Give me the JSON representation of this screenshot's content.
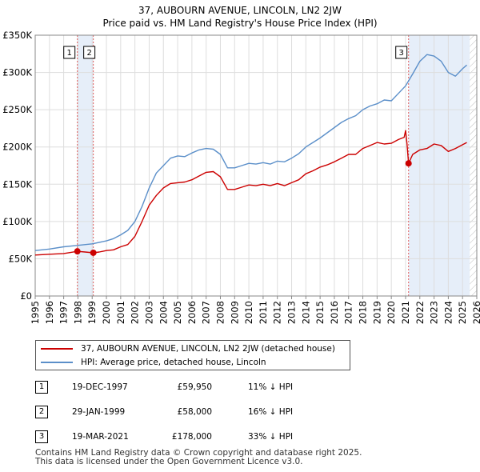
{
  "chart_data": {
    "type": "line",
    "title_line1": "37, AUBOURN AVENUE, LINCOLN, LN2 2JW",
    "title_line2": "Price paid vs. HM Land Registry's House Price Index (HPI)",
    "xlim": [
      1995,
      2026
    ],
    "ylim": [
      0,
      350000
    ],
    "y_ticks": [
      {
        "value": 0,
        "label": "£0"
      },
      {
        "value": 50000,
        "label": "£50K"
      },
      {
        "value": 100000,
        "label": "£100K"
      },
      {
        "value": 150000,
        "label": "£150K"
      },
      {
        "value": 200000,
        "label": "£200K"
      },
      {
        "value": 250000,
        "label": "£250K"
      },
      {
        "value": 300000,
        "label": "£300K"
      },
      {
        "value": 350000,
        "label": "£350K"
      }
    ],
    "x_ticks": [
      "1995",
      "1996",
      "1997",
      "1998",
      "1999",
      "2000",
      "2001",
      "2002",
      "2003",
      "2004",
      "2005",
      "2006",
      "2007",
      "2008",
      "2009",
      "2010",
      "2011",
      "2012",
      "2013",
      "2014",
      "2015",
      "2016",
      "2017",
      "2018",
      "2019",
      "2020",
      "2021",
      "2022",
      "2023",
      "2024",
      "2025",
      "2026"
    ],
    "shaded_spans": [
      {
        "x0": 1997.96,
        "x1": 1999.08
      },
      {
        "x0": 2021.21,
        "x1": 2025.5
      }
    ],
    "hatch_from": 2025.5,
    "series": [
      {
        "name": "37, AUBOURN AVENUE, LINCOLN, LN2 2JW (detached house)",
        "color": "#cc0000",
        "x": [
          1995,
          1996,
          1997,
          1997.96,
          1998.5,
          1999.08,
          1999.5,
          2000,
          2000.5,
          2001,
          2001.5,
          2002,
          2002.5,
          2003,
          2003.5,
          2004,
          2004.5,
          2005,
          2005.5,
          2006,
          2006.5,
          2007,
          2007.5,
          2008,
          2008.5,
          2009,
          2009.5,
          2010,
          2010.5,
          2011,
          2011.5,
          2012,
          2012.5,
          2013,
          2013.5,
          2014,
          2014.5,
          2015,
          2015.5,
          2016,
          2016.5,
          2017,
          2017.5,
          2018,
          2018.5,
          2019,
          2019.5,
          2020,
          2020.5,
          2020.9,
          2021.0,
          2021.1,
          2021.21,
          2021.5,
          2022,
          2022.5,
          2023,
          2023.5,
          2024,
          2024.5,
          2025,
          2025.3
        ],
        "values": [
          55000,
          56000,
          57000,
          59950,
          59000,
          58000,
          59000,
          61000,
          62000,
          66000,
          69000,
          80000,
          100000,
          122000,
          135000,
          145000,
          151000,
          152000,
          153000,
          156000,
          161000,
          166000,
          167000,
          160000,
          143000,
          143000,
          146000,
          149000,
          148000,
          150000,
          148000,
          151000,
          148000,
          152000,
          156000,
          164000,
          168000,
          173000,
          176000,
          180000,
          185000,
          190000,
          190000,
          198000,
          202000,
          206000,
          204000,
          205000,
          210000,
          213000,
          222000,
          205000,
          178000,
          190000,
          196000,
          198000,
          204000,
          202000,
          194000,
          198000,
          203000,
          206000
        ]
      },
      {
        "name": "HPI: Average price, detached house, Lincoln",
        "color": "#5b8fc9",
        "x": [
          1995,
          1996,
          1997,
          1998,
          1999,
          2000,
          2000.5,
          2001,
          2001.5,
          2002,
          2002.5,
          2003,
          2003.5,
          2004,
          2004.5,
          2005,
          2005.5,
          2006,
          2006.5,
          2007,
          2007.5,
          2008,
          2008.5,
          2009,
          2009.5,
          2010,
          2010.5,
          2011,
          2011.5,
          2012,
          2012.5,
          2013,
          2013.5,
          2014,
          2014.5,
          2015,
          2015.5,
          2016,
          2016.5,
          2017,
          2017.5,
          2018,
          2018.5,
          2019,
          2019.5,
          2020,
          2020.5,
          2021,
          2021.5,
          2022,
          2022.5,
          2023,
          2023.5,
          2024,
          2024.5,
          2025,
          2025.3
        ],
        "values": [
          61000,
          63000,
          66000,
          68000,
          70000,
          74000,
          77000,
          82000,
          88000,
          100000,
          120000,
          145000,
          165000,
          175000,
          185000,
          188000,
          187000,
          192000,
          196000,
          198000,
          197000,
          190000,
          172000,
          172000,
          175000,
          178000,
          177000,
          179000,
          177000,
          181000,
          180000,
          185000,
          191000,
          200000,
          206000,
          212000,
          219000,
          226000,
          233000,
          238000,
          242000,
          250000,
          255000,
          258000,
          263000,
          262000,
          272000,
          282000,
          298000,
          315000,
          324000,
          322000,
          315000,
          300000,
          295000,
          305000,
          310000
        ]
      }
    ],
    "sale_markers": [
      {
        "label": "1",
        "x": 1997.96,
        "value": 59950
      },
      {
        "label": "2",
        "x": 1999.08,
        "value": 58000
      },
      {
        "label": "3",
        "x": 2021.21,
        "value": 178000
      }
    ]
  },
  "legend": {
    "items": [
      {
        "label": "37, AUBOURN AVENUE, LINCOLN, LN2 2JW (detached house)",
        "color": "#cc0000"
      },
      {
        "label": "HPI: Average price, detached house, Lincoln",
        "color": "#5b8fc9"
      }
    ]
  },
  "sales_table": [
    {
      "num": "1",
      "date": "19-DEC-1997",
      "price": "£59,950",
      "hpi": "11% ↓ HPI"
    },
    {
      "num": "2",
      "date": "29-JAN-1999",
      "price": "£58,000",
      "hpi": "16% ↓ HPI"
    },
    {
      "num": "3",
      "date": "19-MAR-2021",
      "price": "£178,000",
      "hpi": "33% ↓ HPI"
    }
  ],
  "footer": {
    "line1": "Contains HM Land Registry data © Crown copyright and database right 2025.",
    "line2": "This data is licensed under the Open Government Licence v3.0."
  }
}
